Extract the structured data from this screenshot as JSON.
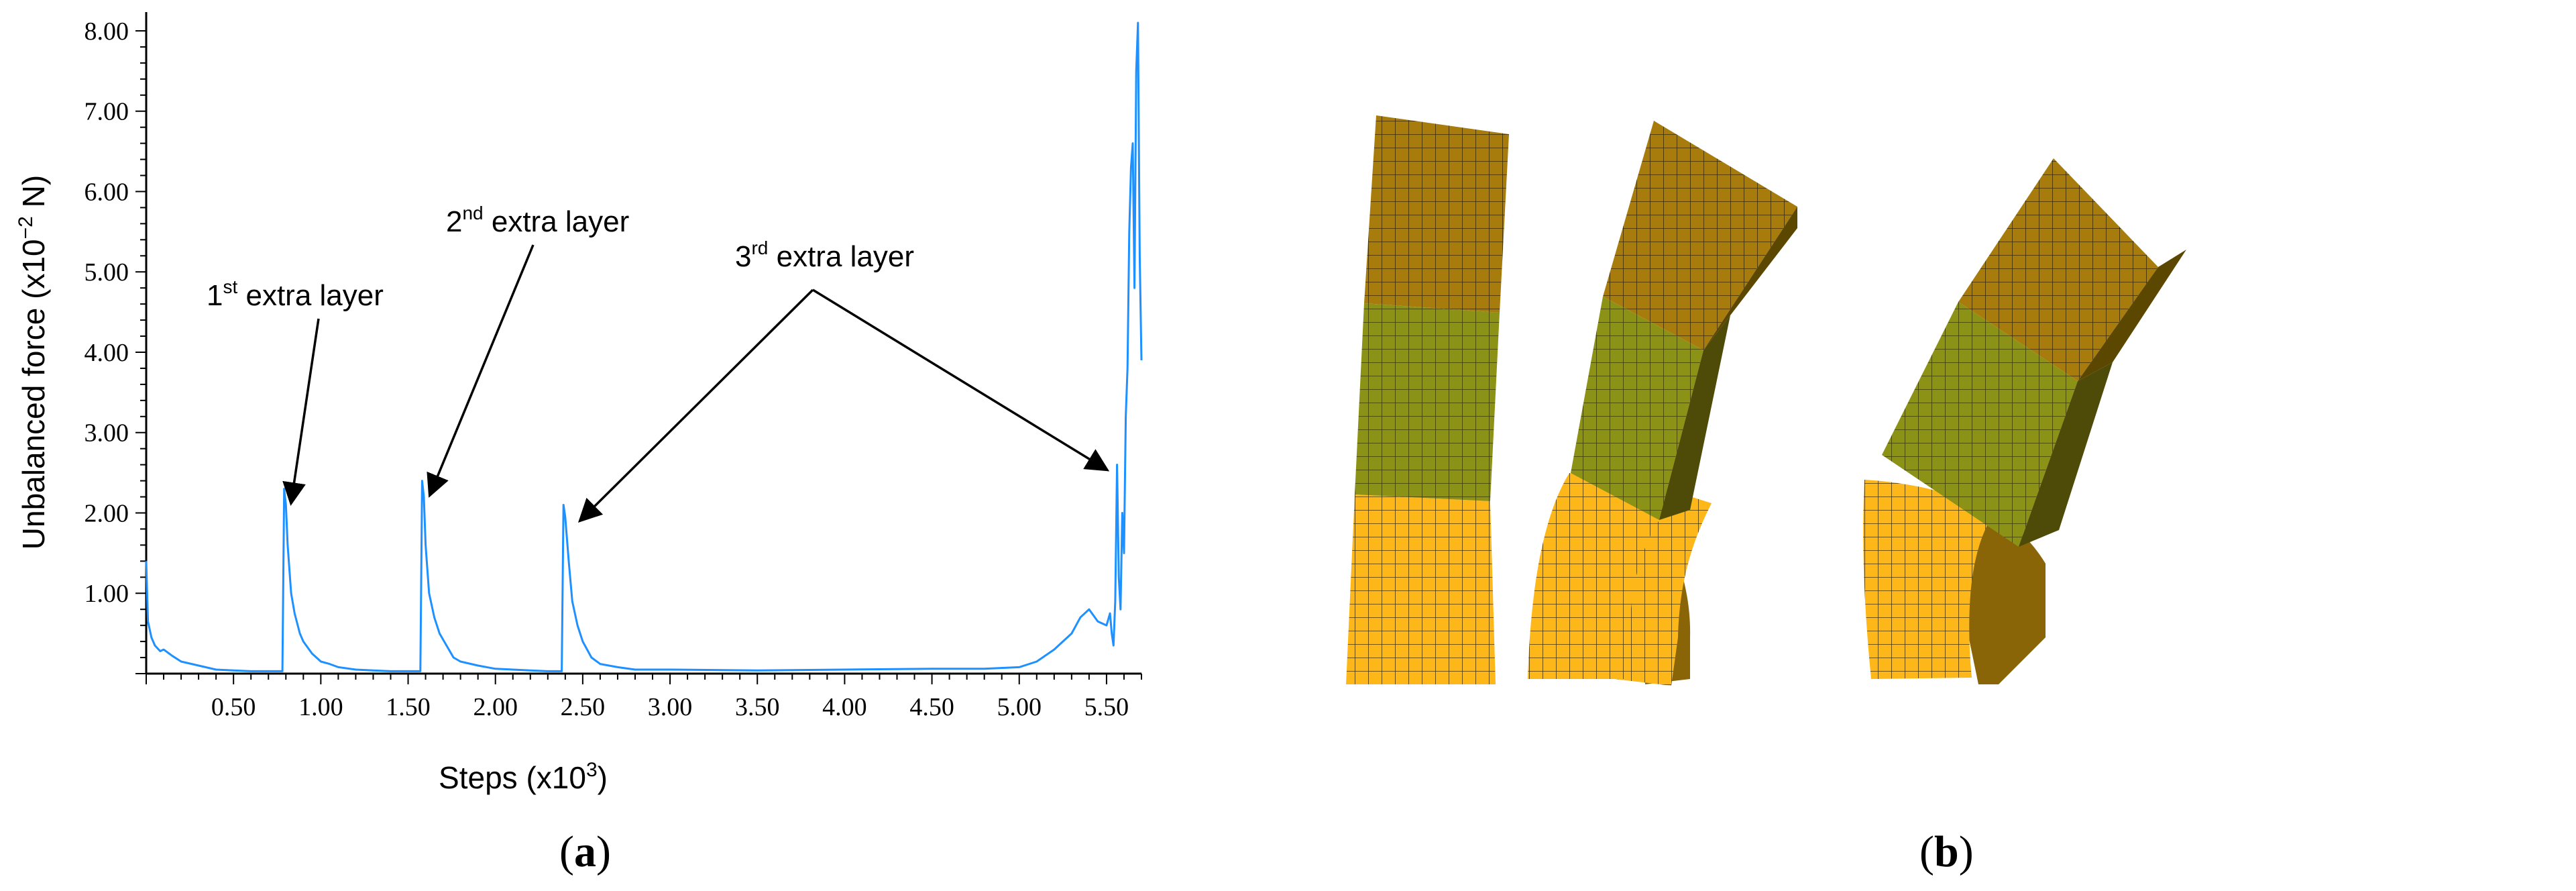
{
  "chart_data": {
    "type": "line",
    "xlabel": "Steps (x10",
    "xlabel_sup": "3",
    "xlabel_end": ")",
    "ylabel": "Unbalanced force (x10",
    "ylabel_sup": "−2",
    "ylabel_end": " N)",
    "xlim": [
      0,
      5.7
    ],
    "ylim": [
      0,
      8.15
    ],
    "xticks": [
      "0.50",
      "1.00",
      "1.50",
      "2.00",
      "2.50",
      "3.00",
      "3.50",
      "4.00",
      "4.50",
      "5.00",
      "5.50"
    ],
    "yticks": [
      "1.00",
      "2.00",
      "3.00",
      "4.00",
      "5.00",
      "6.00",
      "7.00",
      "8.00"
    ],
    "line_color": "#1E90FF",
    "grid": false,
    "series": [
      {
        "x": [
          0,
          0.01,
          0.03,
          0.05,
          0.08,
          0.1,
          0.15,
          0.2,
          0.3,
          0.4,
          0.5,
          0.6,
          0.7,
          0.78,
          0.79,
          0.8,
          0.81,
          0.83,
          0.85,
          0.88,
          0.9,
          0.95,
          1.0,
          1.05,
          1.1,
          1.2,
          1.3,
          1.4,
          1.5,
          1.57,
          1.58,
          1.59,
          1.6,
          1.62,
          1.65,
          1.68,
          1.72,
          1.76,
          1.8,
          1.9,
          2.0,
          2.1,
          2.2,
          2.3,
          2.38,
          2.39,
          2.4,
          2.42,
          2.44,
          2.47,
          2.5,
          2.55,
          2.6,
          2.7,
          2.8,
          3.0,
          3.5,
          4.0,
          4.5,
          4.8,
          5.0,
          5.1,
          5.2,
          5.3,
          5.35,
          5.4,
          5.45,
          5.5,
          5.52,
          5.53,
          5.54,
          5.55,
          5.56,
          5.57,
          5.58,
          5.59,
          5.6,
          5.61,
          5.62,
          5.63,
          5.64,
          5.65,
          5.66,
          5.67,
          5.68,
          5.69,
          5.7
        ],
        "y": [
          1.4,
          0.65,
          0.45,
          0.35,
          0.28,
          0.3,
          0.22,
          0.15,
          0.1,
          0.05,
          0.04,
          0.03,
          0.03,
          0.03,
          2.3,
          2.1,
          1.6,
          1.0,
          0.75,
          0.5,
          0.4,
          0.25,
          0.15,
          0.12,
          0.08,
          0.05,
          0.04,
          0.03,
          0.03,
          0.03,
          2.4,
          2.2,
          1.6,
          1.0,
          0.7,
          0.5,
          0.35,
          0.2,
          0.15,
          0.1,
          0.06,
          0.05,
          0.04,
          0.03,
          0.03,
          2.1,
          1.95,
          1.4,
          0.9,
          0.6,
          0.4,
          0.2,
          0.12,
          0.08,
          0.05,
          0.05,
          0.04,
          0.05,
          0.06,
          0.06,
          0.08,
          0.15,
          0.3,
          0.5,
          0.7,
          0.8,
          0.65,
          0.6,
          0.75,
          0.5,
          0.35,
          0.9,
          2.6,
          1.2,
          0.8,
          2.0,
          1.5,
          3.2,
          3.8,
          5.5,
          6.3,
          6.6,
          4.8,
          7.5,
          8.1,
          5.2,
          3.9
        ]
      }
    ],
    "annotations": [
      {
        "base": "1",
        "sup": "st",
        "rest": " extra layer",
        "x": 0.8,
        "y": 2.3
      },
      {
        "base": "2",
        "sup": "nd",
        "rest": " extra layer",
        "x": 1.58,
        "y": 2.4
      },
      {
        "base": "3",
        "sup": "rd",
        "rest": " extra layer",
        "x": 2.42,
        "y": 2.1
      },
      {
        "x": 5.53,
        "y": 2.6
      }
    ]
  },
  "panel_a_label": "a",
  "panel_b_label": "b",
  "colors": {
    "top_block": "#A87C0C",
    "middle_block": "#8C9215",
    "bottom_block": "#FDB719",
    "mesh_line": "#3A2A00",
    "side_face": "#5C4700"
  }
}
